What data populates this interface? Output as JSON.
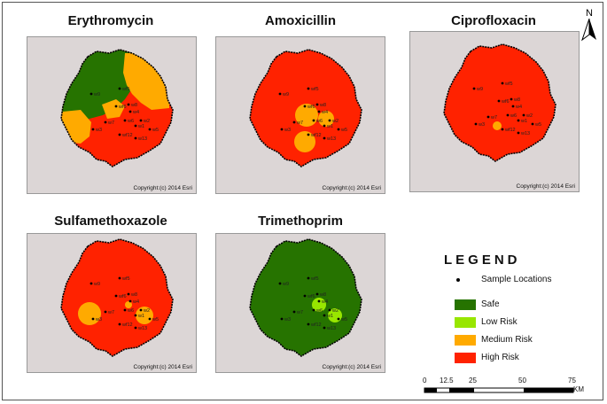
{
  "north_arrow": {
    "label": "N",
    "icon": "north-arrow-icon"
  },
  "credit_text": "Copyright:(c) 2014 Esri",
  "panels": [
    {
      "title": "Erythromycin"
    },
    {
      "title": "Amoxicillin"
    },
    {
      "title": "Ciprofloxacin"
    },
    {
      "title": "Sulfamethoxazole"
    },
    {
      "title": "Trimethoprim"
    }
  ],
  "sample_labels": [
    "w9",
    "wf5",
    "wf6",
    "w8",
    "w4",
    "w6",
    "w7",
    "w1",
    "w2",
    "w5",
    "w3",
    "wf12",
    "w13"
  ],
  "legend": {
    "title": "LEGEND",
    "items": [
      {
        "label": "Sample Locations",
        "type": "point",
        "color": "#000000"
      },
      {
        "label": "Safe",
        "type": "fill",
        "color": "#267300"
      },
      {
        "label": "Low Risk",
        "type": "fill",
        "color": "#98E600"
      },
      {
        "label": "Medium Risk",
        "type": "fill",
        "color": "#FFAA00"
      },
      {
        "label": "High Risk",
        "type": "fill",
        "color": "#FF2200"
      }
    ]
  },
  "scale_bar": {
    "ticks": [
      "0",
      "12.5",
      "25",
      "50",
      "75"
    ],
    "unit": "KM"
  },
  "colors": {
    "safe": "#267300",
    "low": "#98E600",
    "medium": "#FFAA00",
    "high": "#FF2200",
    "basemap": "#D9D4D4"
  }
}
